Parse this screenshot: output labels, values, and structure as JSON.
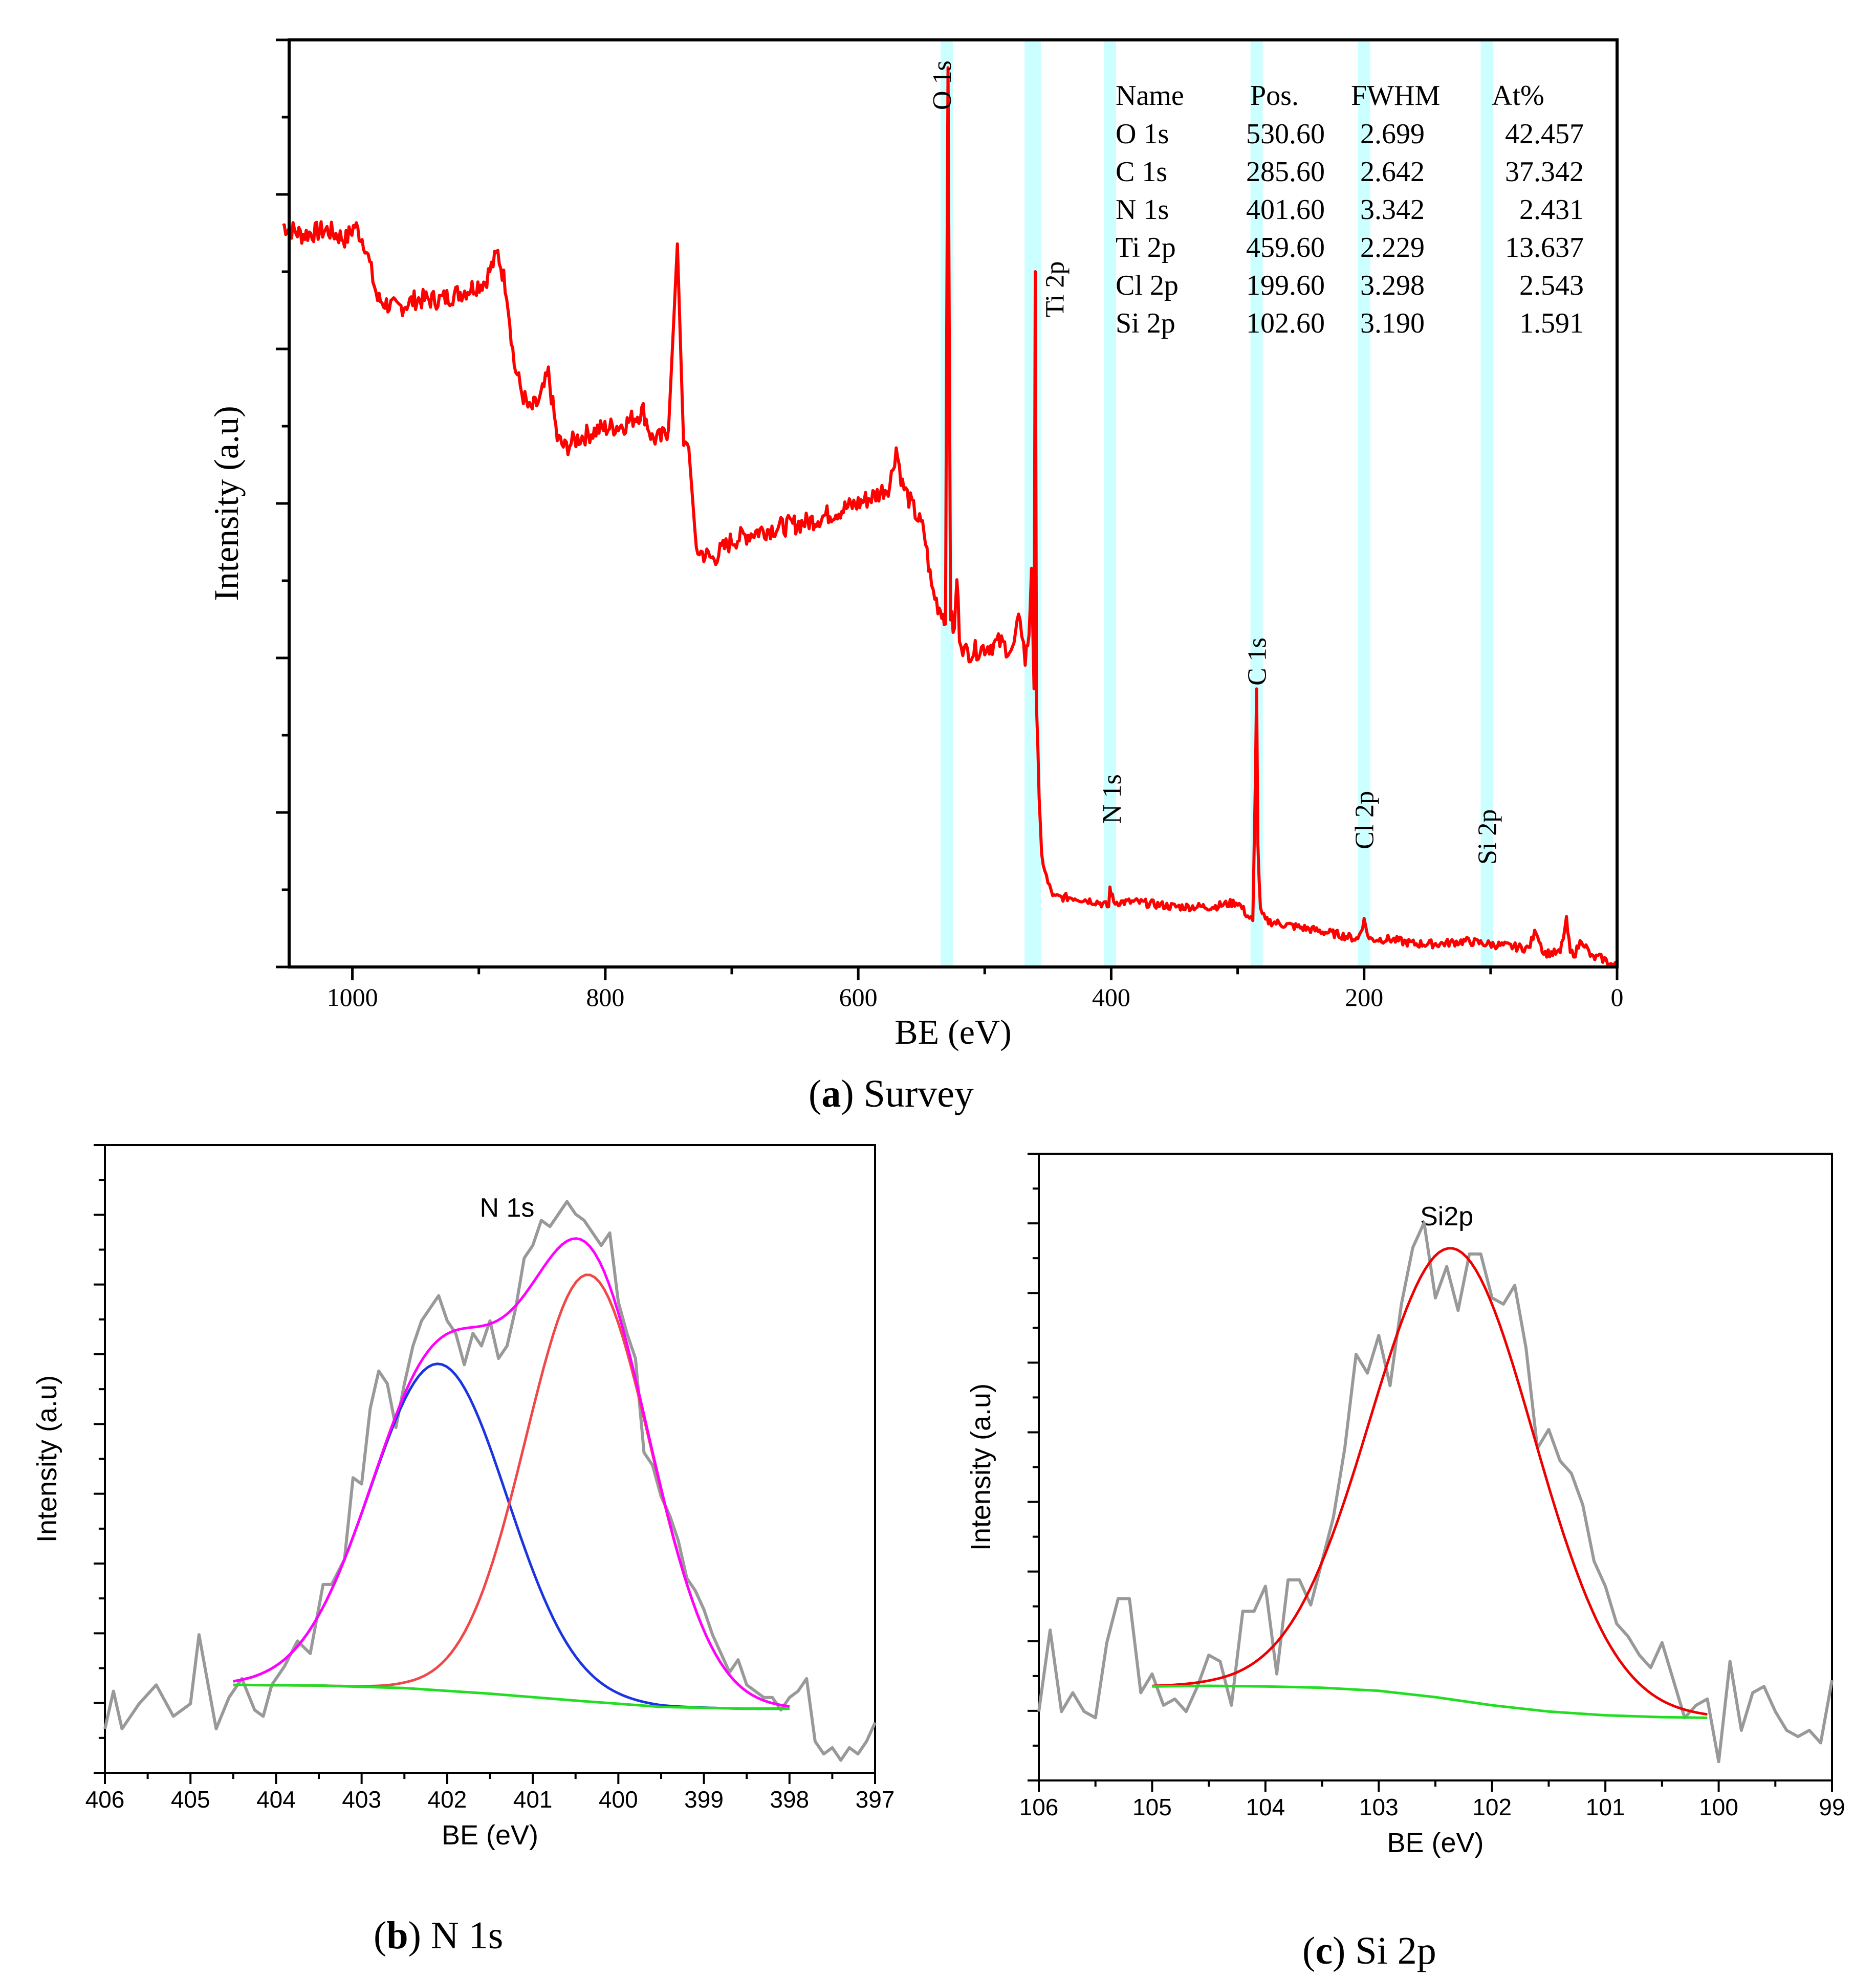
{
  "chart_data": [
    {
      "id": "survey",
      "type": "line",
      "caption": {
        "letter": "a",
        "text": "Survey"
      },
      "xlabel": "BE (eV)",
      "ylabel": "Intensity (a.u)",
      "xlim": [
        1050,
        0
      ],
      "ylim": [
        0,
        100
      ],
      "xticks": [
        1000,
        800,
        600,
        400,
        200,
        0
      ],
      "line_color": "#ff0000",
      "band_color": "#ccffff",
      "peak_labels": [
        {
          "label": "O 1s",
          "x": 530
        },
        {
          "label": "Ti 2p",
          "x": 459
        },
        {
          "label": "N 1s",
          "x": 401
        },
        {
          "label": "C 1s",
          "x": 285
        },
        {
          "label": "Cl 2p",
          "x": 200
        },
        {
          "label": "Si 2p",
          "x": 103
        }
      ],
      "bands": [
        530,
        462,
        401,
        285,
        200,
        103
      ],
      "table": {
        "headers": [
          "Name",
          "Pos.",
          "FWHM",
          "At%"
        ],
        "rows": [
          [
            "O 1s",
            "530.60",
            "2.699",
            "42.457"
          ],
          [
            "C 1s",
            "285.60",
            "2.642",
            "37.342"
          ],
          [
            "N 1s",
            "401.60",
            "3.342",
            "2.431"
          ],
          [
            "Ti 2p",
            "459.60",
            "2.229",
            "13.637"
          ],
          [
            "Cl 2p",
            "199.60",
            "3.298",
            "2.543"
          ],
          [
            "Si 2p",
            "102.60",
            "3.190",
            "1.591"
          ]
        ]
      },
      "series": [
        {
          "name": "survey",
          "x": [
            1055,
            1040,
            1020,
            1005,
            998,
            990,
            980,
            965,
            950,
            930,
            910,
            895,
            885,
            878,
            872,
            866,
            860,
            852,
            845,
            838,
            832,
            822,
            805,
            785,
            770,
            763,
            756,
            750,
            743,
            738,
            734,
            728,
            715,
            700,
            680,
            660,
            640,
            620,
            600,
            585,
            575,
            570,
            565,
            555,
            548,
            542,
            537,
            534,
            531,
            530,
            529,
            527,
            524,
            522,
            520,
            516,
            510,
            500,
            488,
            478,
            472,
            468,
            465,
            463,
            461,
            460,
            459,
            458,
            457,
            455,
            450,
            445,
            430,
            410,
            402,
            401,
            398,
            380,
            350,
            320,
            300,
            292,
            288,
            286,
            285,
            284,
            282,
            278,
            260,
            240,
            220,
            205,
            200,
            196,
            180,
            160,
            140,
            120,
            103,
            90,
            70,
            64,
            58,
            45,
            40,
            37,
            33,
            28,
            20,
            14,
            10,
            5,
            0
          ],
          "y": [
            80,
            79,
            79.5,
            78.5,
            80,
            78,
            72,
            71,
            72,
            72,
            73,
            74,
            77,
            73,
            65,
            62,
            60,
            61,
            64,
            57,
            56,
            57,
            58,
            58.5,
            60,
            57,
            57,
            58,
            78,
            56,
            56,
            45,
            44,
            46,
            47,
            47.5,
            48,
            49,
            50,
            51,
            52,
            56,
            52,
            49,
            47,
            41,
            39,
            38.5,
            37,
            70,
            97,
            38,
            36,
            42,
            36,
            34,
            34,
            34.5,
            35,
            34,
            38,
            33,
            36,
            43,
            30,
            75,
            28,
            24,
            18,
            12,
            9,
            7.5,
            7.5,
            7,
            6.5,
            8.5,
            7,
            7,
            6.5,
            6.5,
            7,
            5.5,
            5,
            20,
            30,
            13,
            6,
            5,
            4.5,
            4,
            3.5,
            3,
            5,
            3,
            3,
            2.5,
            2.5,
            2.8,
            2.5,
            2.3,
            2,
            4,
            1.5,
            1.5,
            5,
            1.5,
            1.5,
            3,
            1,
            1,
            0.8,
            0.3,
            0.1
          ]
        }
      ]
    },
    {
      "id": "n1s",
      "type": "line",
      "caption": {
        "letter": "b",
        "text": "N 1s"
      },
      "title": "N 1s",
      "xlabel": "BE (eV)",
      "ylabel": "Intensity (a.u)",
      "xlim": [
        406,
        397
      ],
      "ylim": [
        0,
        100
      ],
      "xticks": [
        406,
        405,
        404,
        403,
        402,
        401,
        400,
        399,
        398,
        397
      ],
      "series": [
        {
          "name": "raw",
          "color": "#999999",
          "x": [
            406,
            405.9,
            405.8,
            405.6,
            405.4,
            405.2,
            405.0,
            404.9,
            404.7,
            404.55,
            404.4,
            404.25,
            404.15,
            404.05,
            403.9,
            403.75,
            403.6,
            403.45,
            403.35,
            403.2,
            403.1,
            403.0,
            402.9,
            402.8,
            402.7,
            402.6,
            402.5,
            402.4,
            402.3,
            402.2,
            402.1,
            402.0,
            401.9,
            401.8,
            401.7,
            401.6,
            401.5,
            401.4,
            401.3,
            401.2,
            401.1,
            401.0,
            400.9,
            400.8,
            400.7,
            400.6,
            400.5,
            400.4,
            400.3,
            400.2,
            400.1,
            400.0,
            399.9,
            399.8,
            399.7,
            399.6,
            399.5,
            399.4,
            399.3,
            399.2,
            399.1,
            399.0,
            398.9,
            398.8,
            398.7,
            398.6,
            398.5,
            398.4,
            398.3,
            398.2,
            398.1,
            398.0,
            397.9,
            397.8,
            397.7,
            397.6,
            397.5,
            397.4,
            397.3,
            397.2,
            397.1,
            397.0
          ],
          "y": [
            7,
            13,
            7,
            11,
            14,
            9,
            11,
            22,
            7,
            12,
            15,
            10,
            9,
            14,
            17,
            21,
            19,
            30,
            30,
            34,
            47,
            46,
            58,
            64,
            62,
            55,
            62,
            68,
            72,
            74,
            76,
            72,
            70,
            65,
            70,
            68,
            72,
            66,
            68,
            74,
            82,
            84,
            88,
            87,
            89,
            91,
            89,
            88,
            86,
            84,
            86,
            75,
            70,
            66,
            51,
            49,
            44,
            41,
            37,
            31,
            29,
            26,
            22,
            19,
            16,
            18,
            14,
            13,
            12,
            12,
            10,
            12,
            13,
            15,
            5,
            3,
            4,
            2,
            4,
            3,
            5,
            8
          ]
        },
        {
          "name": "peak 1",
          "color": "#1a35e0",
          "gauss": {
            "center": 402.1,
            "height": 52,
            "sigma": 0.8
          }
        },
        {
          "name": "peak 2",
          "color": "#f04848",
          "gauss": {
            "center": 400.35,
            "height": 68,
            "sigma": 0.73
          }
        },
        {
          "name": "envelope",
          "color": "#ff00ff",
          "envelope": true
        },
        {
          "name": "background",
          "color": "#22dd22",
          "x": [
            404.5,
            403.5,
            402.5,
            401.5,
            400.5,
            399.5,
            398.5,
            398
          ],
          "y": [
            14,
            13.9,
            13.5,
            12.6,
            11.5,
            10.5,
            10.2,
            10.2
          ]
        }
      ]
    },
    {
      "id": "si2p",
      "type": "line",
      "caption": {
        "letter": "c",
        "text": "Si 2p"
      },
      "title": "Si2p",
      "xlabel": "BE (eV)",
      "ylabel": "Intensity (a.u)",
      "xlim": [
        106,
        99
      ],
      "ylim": [
        0,
        100
      ],
      "xticks": [
        106,
        105,
        104,
        103,
        102,
        101,
        100,
        99
      ],
      "series": [
        {
          "name": "raw",
          "color": "#999999",
          "x": [
            106,
            105.9,
            105.8,
            105.7,
            105.6,
            105.5,
            105.4,
            105.3,
            105.2,
            105.1,
            105.0,
            104.9,
            104.8,
            104.7,
            104.6,
            104.5,
            104.4,
            104.3,
            104.2,
            104.1,
            104.0,
            103.9,
            103.8,
            103.7,
            103.6,
            103.5,
            103.4,
            103.3,
            103.2,
            103.1,
            103.0,
            102.9,
            102.8,
            102.7,
            102.6,
            102.5,
            102.4,
            102.3,
            102.2,
            102.1,
            102.0,
            101.9,
            101.8,
            101.7,
            101.6,
            101.5,
            101.4,
            101.3,
            101.2,
            101.1,
            101.0,
            100.9,
            100.8,
            100.7,
            100.6,
            100.5,
            100.4,
            100.3,
            100.2,
            100.1,
            100.0,
            99.9,
            99.8,
            99.7,
            99.6,
            99.5,
            99.4,
            99.3,
            99.2,
            99.1,
            99.0
          ],
          "y": [
            11,
            24,
            11,
            14,
            11,
            10,
            22,
            29,
            29,
            14,
            17,
            12,
            13,
            11,
            15,
            20,
            19,
            12,
            27,
            27,
            31,
            17,
            32,
            32,
            28,
            35,
            42,
            53,
            68,
            65,
            71,
            63,
            76,
            85,
            89,
            77,
            82,
            75,
            84,
            84,
            77,
            76,
            79,
            69,
            53,
            56,
            51,
            49,
            44,
            35,
            31,
            25,
            23,
            20,
            18,
            22,
            16,
            10,
            12,
            13,
            3,
            19,
            8,
            14,
            15,
            11,
            8,
            7,
            8,
            6,
            16
          ]
        },
        {
          "name": "fit",
          "color": "#ee0000",
          "gauss": {
            "center": 102.35,
            "height": 72,
            "sigma": 0.72
          }
        },
        {
          "name": "background",
          "color": "#22dd22",
          "x": [
            105,
            104.5,
            104,
            103.5,
            103,
            102.5,
            102,
            101.5,
            101,
            100.5,
            100.1
          ],
          "y": [
            15,
            15.1,
            15,
            14.8,
            14.3,
            13.3,
            12,
            11,
            10.4,
            10.1,
            10
          ]
        }
      ]
    }
  ]
}
